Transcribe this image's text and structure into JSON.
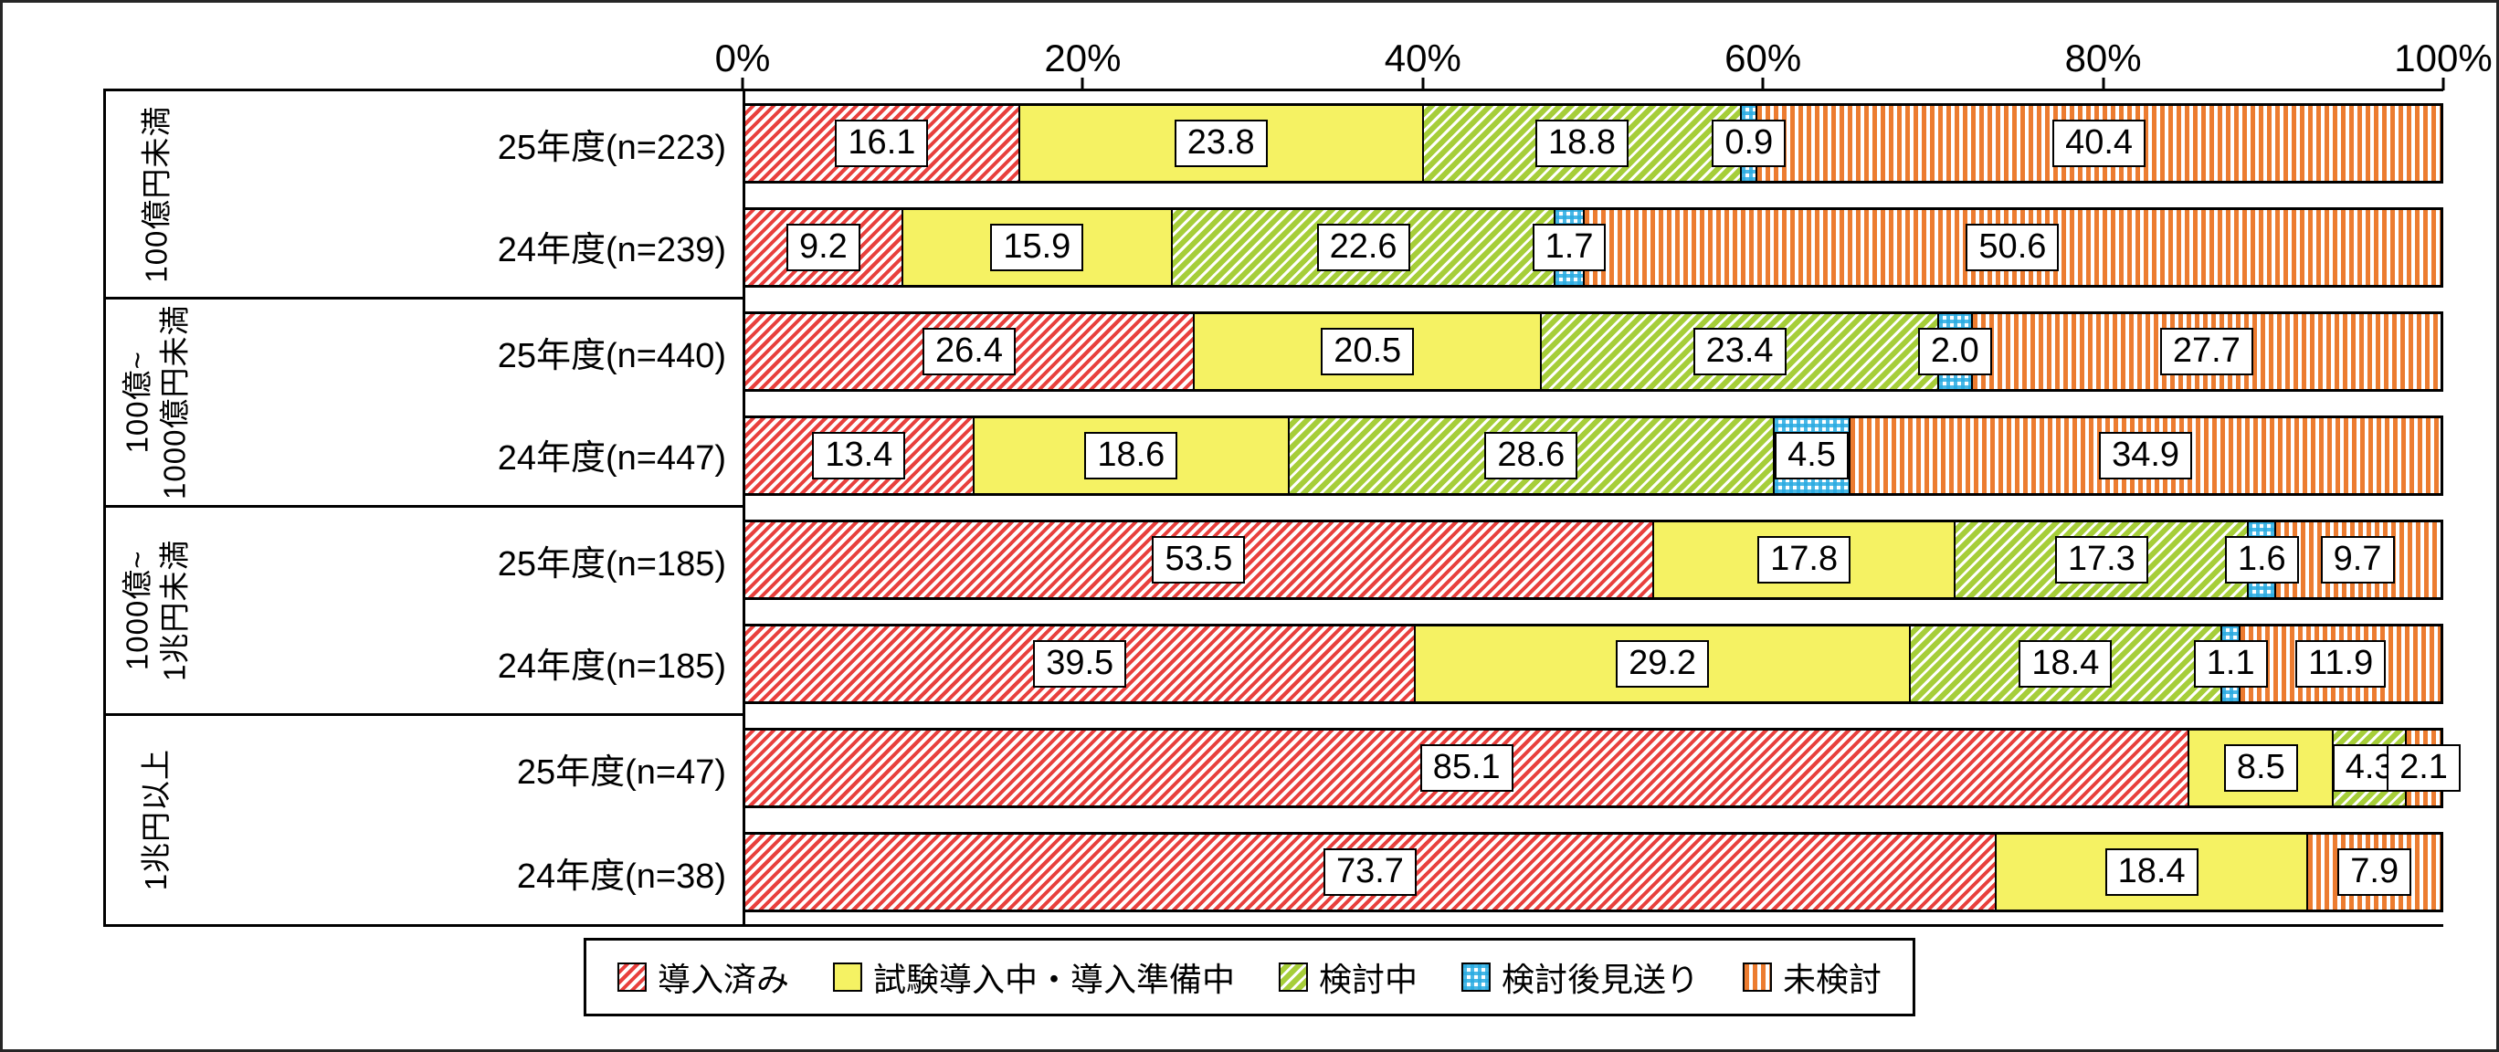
{
  "axis": {
    "ticks": [
      "0%",
      "20%",
      "40%",
      "60%",
      "80%",
      "100%"
    ]
  },
  "chart_data": {
    "type": "bar",
    "subtype": "horizontal-stacked-100",
    "unit": "%",
    "xlim": [
      0,
      100
    ],
    "grid": false,
    "legend_position": "bottom-center",
    "series": [
      {
        "name": "導入済み",
        "pattern": "pat-red",
        "color": "#e8403d"
      },
      {
        "name": "試験導入中・導入準備中",
        "pattern": "pat-yellow",
        "color": "#f5f263"
      },
      {
        "name": "検討中",
        "pattern": "pat-green",
        "color": "#a6ce39"
      },
      {
        "name": "検討後見送り",
        "pattern": "pat-blue",
        "color": "#29abe2"
      },
      {
        "name": "未検討",
        "pattern": "pat-orange",
        "color": "#ec7c30"
      }
    ],
    "groups": [
      {
        "label": "100億円未満",
        "rows": [
          {
            "label": "25年度(n=223)",
            "values": [
              16.1,
              23.8,
              18.8,
              0.9,
              40.4
            ]
          },
          {
            "label": "24年度(n=239)",
            "values": [
              9.2,
              15.9,
              22.6,
              1.7,
              50.6
            ]
          }
        ]
      },
      {
        "label": "100億~\n1000億円未満",
        "rows": [
          {
            "label": "25年度(n=440)",
            "values": [
              26.4,
              20.5,
              23.4,
              2.0,
              27.7
            ]
          },
          {
            "label": "24年度(n=447)",
            "values": [
              13.4,
              18.6,
              28.6,
              4.5,
              34.9
            ]
          }
        ]
      },
      {
        "label": "1000億~\n1兆円未満",
        "rows": [
          {
            "label": "25年度(n=185)",
            "values": [
              53.5,
              17.8,
              17.3,
              1.6,
              9.7
            ]
          },
          {
            "label": "24年度(n=185)",
            "values": [
              39.5,
              29.2,
              18.4,
              1.1,
              11.9
            ]
          }
        ]
      },
      {
        "label": "1兆円以上",
        "rows": [
          {
            "label": "25年度(n=47)",
            "values": [
              85.1,
              8.5,
              4.3,
              null,
              2.1
            ]
          },
          {
            "label": "24年度(n=38)",
            "values": [
              73.7,
              18.4,
              null,
              null,
              7.9
            ]
          }
        ]
      }
    ]
  }
}
